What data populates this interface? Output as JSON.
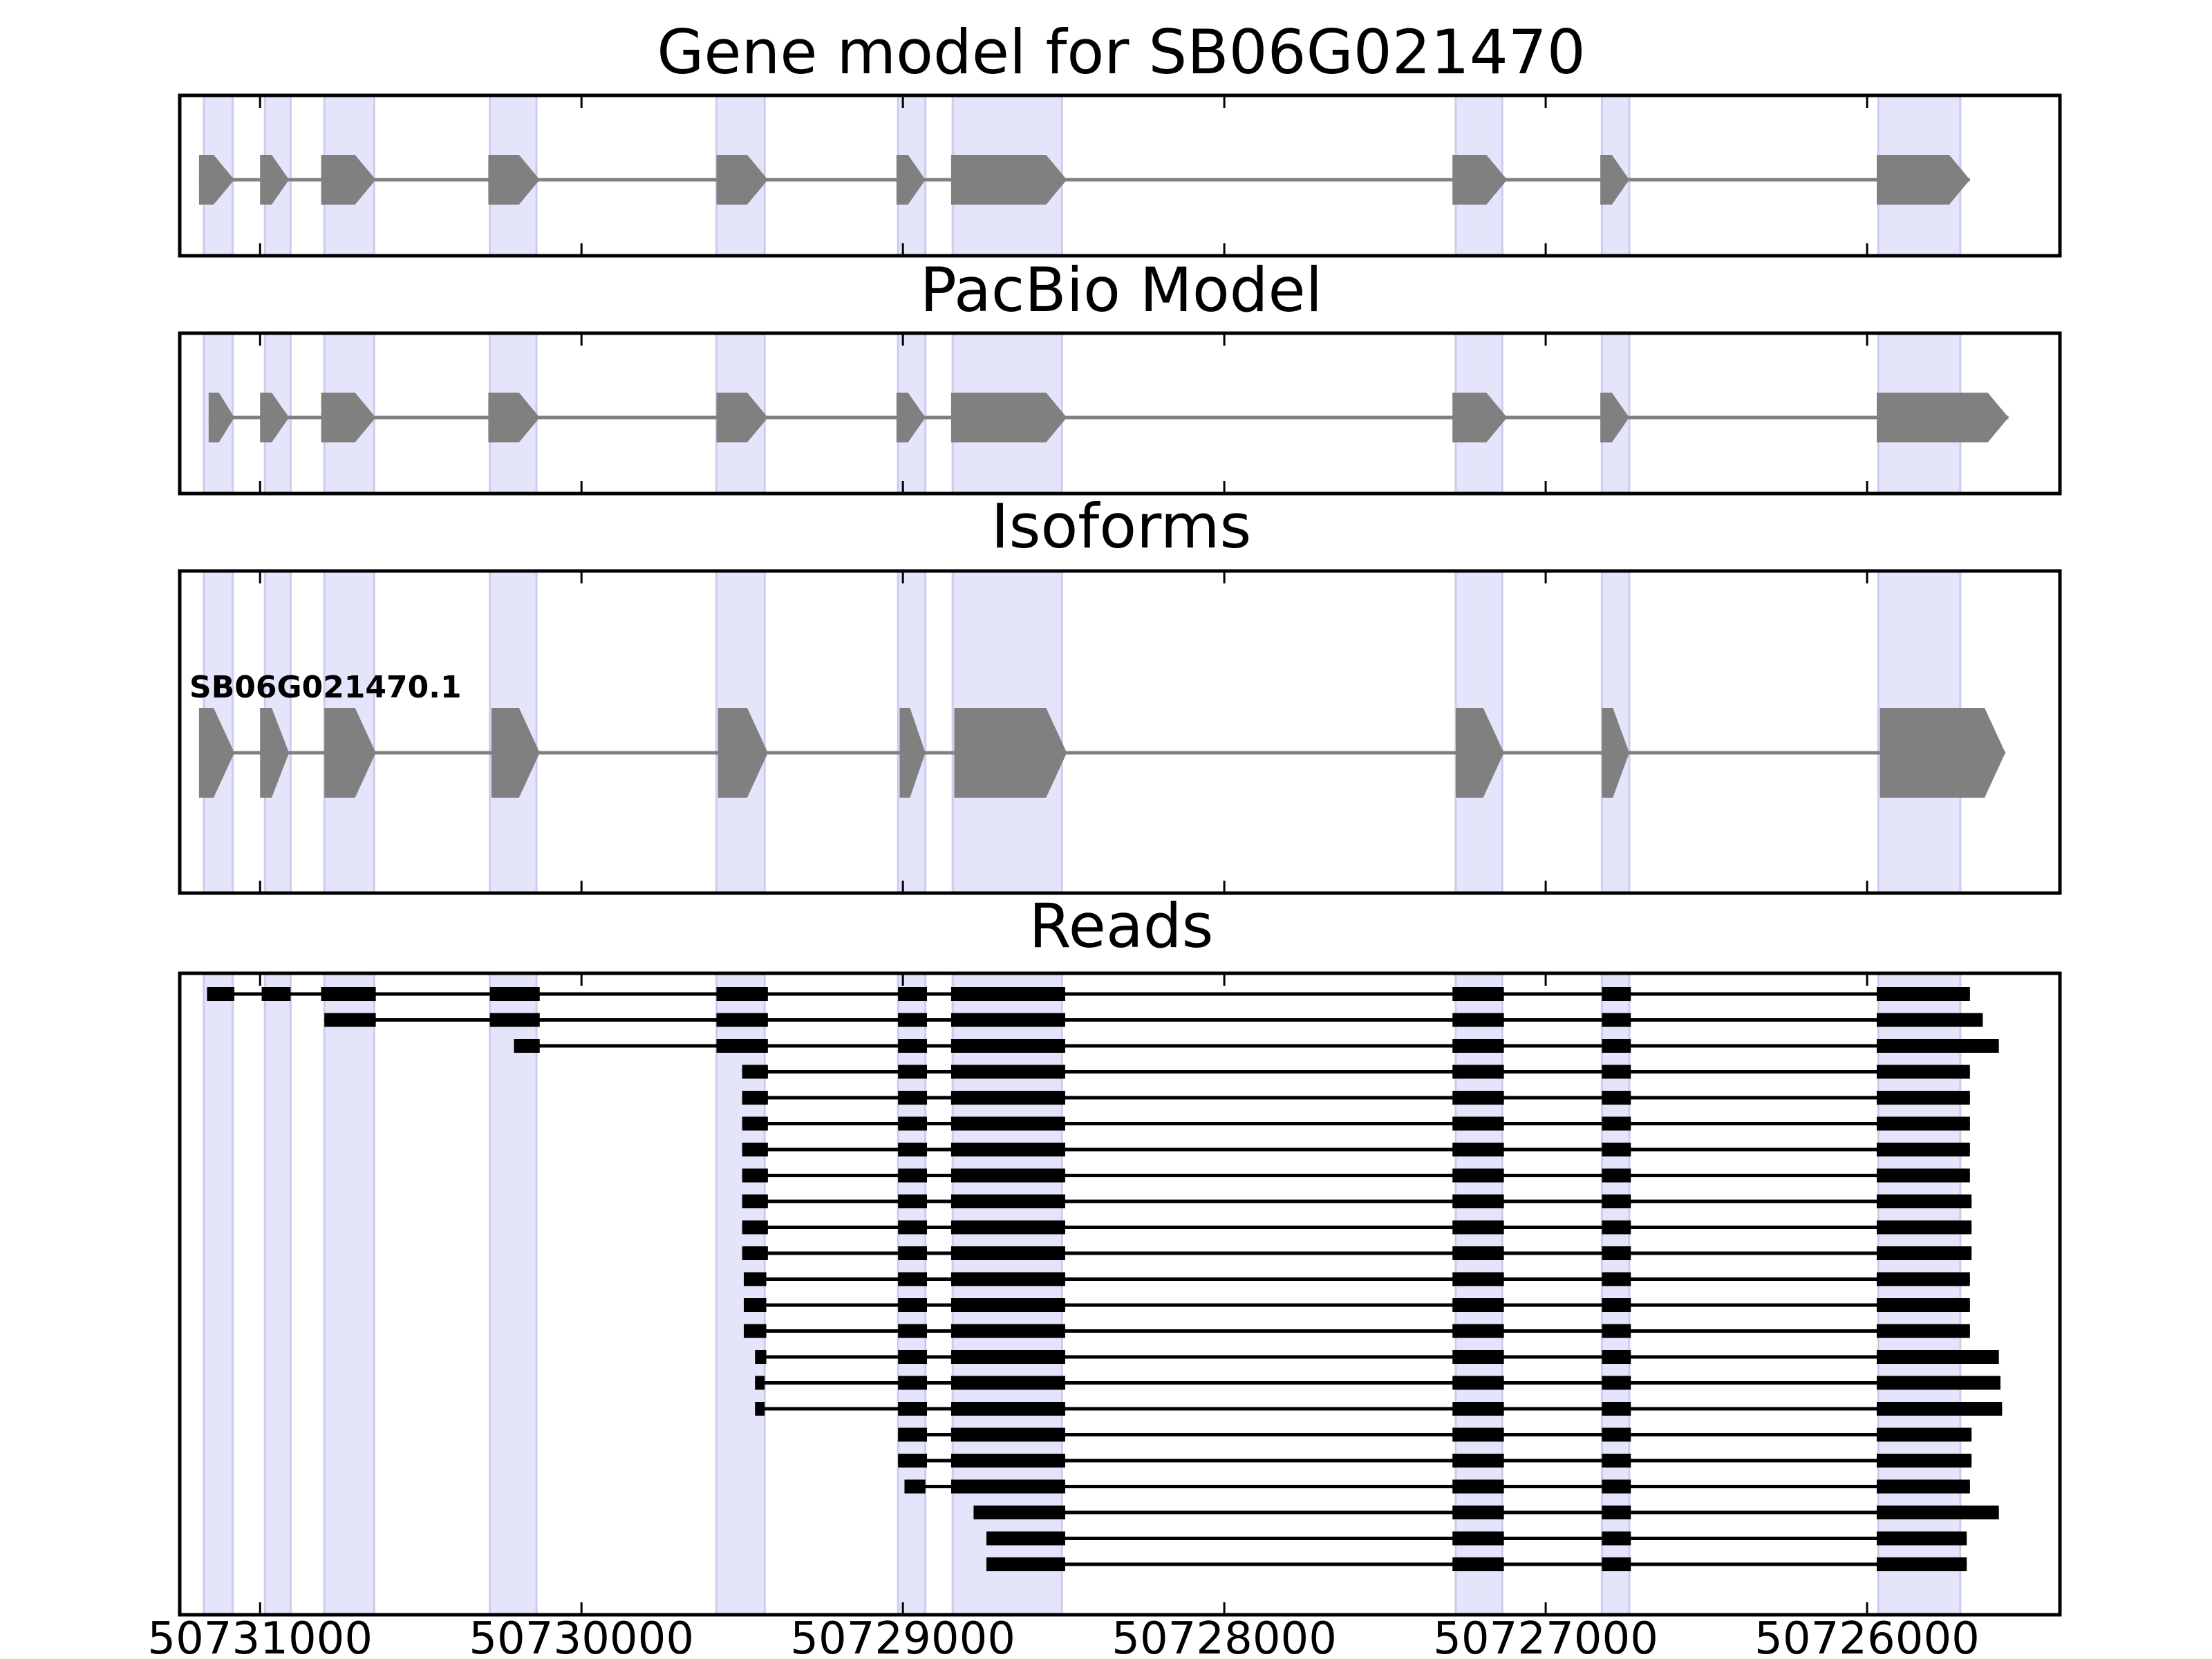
{
  "chart_data": {
    "type": "gene-structure-tracks",
    "xlim": [
      50731250,
      50725400
    ],
    "x_ticks": [
      50731000,
      50730000,
      50729000,
      50728000,
      50727000,
      50726000
    ],
    "x_tick_labels": [
      "50731000",
      "50730000",
      "50729000",
      "50728000",
      "50727000",
      "50726000"
    ],
    "colors": {
      "exon": "#808080",
      "intron": "#808080",
      "highlight": "#e4e4fa",
      "highlight_edge": "#ccccf0",
      "read": "#000000",
      "axis": "#000000"
    },
    "exon_highlights": [
      [
        50731175,
        50731085
      ],
      [
        50730985,
        50730905
      ],
      [
        50730800,
        50730645
      ],
      [
        50730285,
        50730140
      ],
      [
        50729580,
        50729430
      ],
      [
        50729015,
        50728930
      ],
      [
        50728845,
        50728505
      ],
      [
        50727280,
        50727135
      ],
      [
        50726825,
        50726740
      ],
      [
        50725965,
        50725710
      ]
    ],
    "panels": [
      {
        "title": "Gene model for SB06G021470",
        "kind": "gene-model",
        "tracks": [
          {
            "name": "",
            "exons": [
              [
                50731190,
                50731080
              ],
              [
                50731000,
                50730910
              ],
              [
                50730810,
                50730640
              ],
              [
                50730290,
                50730130
              ],
              [
                50729580,
                50729420
              ],
              [
                50729020,
                50728930
              ],
              [
                50728850,
                50728490
              ],
              [
                50727290,
                50727120
              ],
              [
                50726830,
                50726740
              ],
              [
                50725970,
                50725680
              ]
            ]
          }
        ]
      },
      {
        "title": "PacBio Model",
        "kind": "gene-model",
        "tracks": [
          {
            "name": "",
            "exons": [
              [
                50731160,
                50731080
              ],
              [
                50731000,
                50730910
              ],
              [
                50730810,
                50730640
              ],
              [
                50730290,
                50730130
              ],
              [
                50729580,
                50729420
              ],
              [
                50729020,
                50728930
              ],
              [
                50728850,
                50728490
              ],
              [
                50727290,
                50727120
              ],
              [
                50726830,
                50726740
              ],
              [
                50725970,
                50725560
              ]
            ]
          }
        ]
      },
      {
        "title": "Isoforms",
        "kind": "isoforms",
        "tracks": [
          {
            "name": "SB06G021470.1",
            "exons": [
              [
                50731190,
                50731080
              ],
              [
                50731000,
                50730910
              ],
              [
                50730800,
                50730640
              ],
              [
                50730280,
                50730130
              ],
              [
                50729575,
                50729420
              ],
              [
                50729010,
                50728930
              ],
              [
                50728840,
                50728490
              ],
              [
                50727280,
                50727130
              ],
              [
                50726825,
                50726740
              ],
              [
                50725960,
                50725570
              ]
            ]
          }
        ]
      },
      {
        "title": "Reads",
        "kind": "reads",
        "tracks": [
          {
            "exons": [
              [
                50731165,
                50731080
              ],
              [
                50730995,
                50730905
              ],
              [
                50730810,
                50730640
              ],
              [
                50730285,
                50730130
              ],
              [
                50729580,
                50729420
              ],
              [
                50729015,
                50728925
              ],
              [
                50728850,
                50728495
              ],
              [
                50727290,
                50727130
              ],
              [
                50726825,
                50726735
              ],
              [
                50725970,
                50725680
              ]
            ]
          },
          {
            "exons": [
              [
                50730800,
                50730640
              ],
              [
                50730285,
                50730130
              ],
              [
                50729580,
                50729420
              ],
              [
                50729015,
                50728925
              ],
              [
                50728850,
                50728495
              ],
              [
                50727290,
                50727130
              ],
              [
                50726825,
                50726735
              ],
              [
                50725970,
                50725640
              ]
            ]
          },
          {
            "exons": [
              [
                50730210,
                50730130
              ],
              [
                50729580,
                50729420
              ],
              [
                50729015,
                50728925
              ],
              [
                50728850,
                50728495
              ],
              [
                50727290,
                50727130
              ],
              [
                50726825,
                50726735
              ],
              [
                50725970,
                50725590
              ]
            ]
          },
          {
            "exons": [
              [
                50729500,
                50729420
              ],
              [
                50729015,
                50728925
              ],
              [
                50728850,
                50728495
              ],
              [
                50727290,
                50727130
              ],
              [
                50726825,
                50726735
              ],
              [
                50725970,
                50725680
              ]
            ]
          },
          {
            "exons": [
              [
                50729500,
                50729420
              ],
              [
                50729015,
                50728925
              ],
              [
                50728850,
                50728495
              ],
              [
                50727290,
                50727130
              ],
              [
                50726825,
                50726735
              ],
              [
                50725970,
                50725680
              ]
            ]
          },
          {
            "exons": [
              [
                50729500,
                50729420
              ],
              [
                50729015,
                50728925
              ],
              [
                50728850,
                50728495
              ],
              [
                50727290,
                50727130
              ],
              [
                50726825,
                50726735
              ],
              [
                50725970,
                50725680
              ]
            ]
          },
          {
            "exons": [
              [
                50729500,
                50729420
              ],
              [
                50729015,
                50728925
              ],
              [
                50728850,
                50728495
              ],
              [
                50727290,
                50727130
              ],
              [
                50726825,
                50726735
              ],
              [
                50725970,
                50725680
              ]
            ]
          },
          {
            "exons": [
              [
                50729500,
                50729420
              ],
              [
                50729015,
                50728925
              ],
              [
                50728850,
                50728495
              ],
              [
                50727290,
                50727130
              ],
              [
                50726825,
                50726735
              ],
              [
                50725970,
                50725680
              ]
            ]
          },
          {
            "exons": [
              [
                50729500,
                50729420
              ],
              [
                50729015,
                50728925
              ],
              [
                50728850,
                50728495
              ],
              [
                50727290,
                50727130
              ],
              [
                50726825,
                50726735
              ],
              [
                50725970,
                50725675
              ]
            ]
          },
          {
            "exons": [
              [
                50729500,
                50729420
              ],
              [
                50729015,
                50728925
              ],
              [
                50728850,
                50728495
              ],
              [
                50727290,
                50727130
              ],
              [
                50726825,
                50726735
              ],
              [
                50725970,
                50725675
              ]
            ]
          },
          {
            "exons": [
              [
                50729500,
                50729420
              ],
              [
                50729015,
                50728925
              ],
              [
                50728850,
                50728495
              ],
              [
                50727290,
                50727130
              ],
              [
                50726825,
                50726735
              ],
              [
                50725970,
                50725675
              ]
            ]
          },
          {
            "exons": [
              [
                50729495,
                50729425
              ],
              [
                50729015,
                50728925
              ],
              [
                50728850,
                50728495
              ],
              [
                50727290,
                50727130
              ],
              [
                50726825,
                50726735
              ],
              [
                50725970,
                50725680
              ]
            ]
          },
          {
            "exons": [
              [
                50729495,
                50729425
              ],
              [
                50729015,
                50728925
              ],
              [
                50728850,
                50728495
              ],
              [
                50727290,
                50727130
              ],
              [
                50726825,
                50726735
              ],
              [
                50725970,
                50725680
              ]
            ]
          },
          {
            "exons": [
              [
                50729495,
                50729425
              ],
              [
                50729015,
                50728925
              ],
              [
                50728850,
                50728495
              ],
              [
                50727290,
                50727130
              ],
              [
                50726825,
                50726735
              ],
              [
                50725970,
                50725680
              ]
            ]
          },
          {
            "exons": [
              [
                50729460,
                50729425
              ],
              [
                50729015,
                50728925
              ],
              [
                50728850,
                50728495
              ],
              [
                50727290,
                50727130
              ],
              [
                50726825,
                50726735
              ],
              [
                50725970,
                50725590
              ]
            ]
          },
          {
            "exons": [
              [
                50729460,
                50729430
              ],
              [
                50729015,
                50728925
              ],
              [
                50728850,
                50728495
              ],
              [
                50727290,
                50727130
              ],
              [
                50726825,
                50726735
              ],
              [
                50725970,
                50725585
              ]
            ]
          },
          {
            "exons": [
              [
                50729460,
                50729430
              ],
              [
                50729015,
                50728925
              ],
              [
                50728850,
                50728495
              ],
              [
                50727290,
                50727130
              ],
              [
                50726825,
                50726735
              ],
              [
                50725970,
                50725580
              ]
            ]
          },
          {
            "exons": [
              [
                50729015,
                50728925
              ],
              [
                50728850,
                50728495
              ],
              [
                50727290,
                50727130
              ],
              [
                50726825,
                50726735
              ],
              [
                50725970,
                50725675
              ]
            ]
          },
          {
            "exons": [
              [
                50729015,
                50728925
              ],
              [
                50728850,
                50728495
              ],
              [
                50727290,
                50727130
              ],
              [
                50726825,
                50726735
              ],
              [
                50725970,
                50725675
              ]
            ]
          },
          {
            "exons": [
              [
                50728995,
                50728930
              ],
              [
                50728850,
                50728495
              ],
              [
                50727290,
                50727130
              ],
              [
                50726825,
                50726735
              ],
              [
                50725970,
                50725680
              ]
            ]
          },
          {
            "exons": [
              [
                50728780,
                50728495
              ],
              [
                50727290,
                50727130
              ],
              [
                50726825,
                50726735
              ],
              [
                50725970,
                50725590
              ]
            ]
          },
          {
            "exons": [
              [
                50728740,
                50728495
              ],
              [
                50727290,
                50727130
              ],
              [
                50726825,
                50726735
              ],
              [
                50725970,
                50725690
              ]
            ]
          },
          {
            "exons": [
              [
                50728740,
                50728495
              ],
              [
                50727290,
                50727130
              ],
              [
                50726825,
                50726735
              ],
              [
                50725970,
                50725690
              ]
            ]
          }
        ]
      }
    ]
  }
}
